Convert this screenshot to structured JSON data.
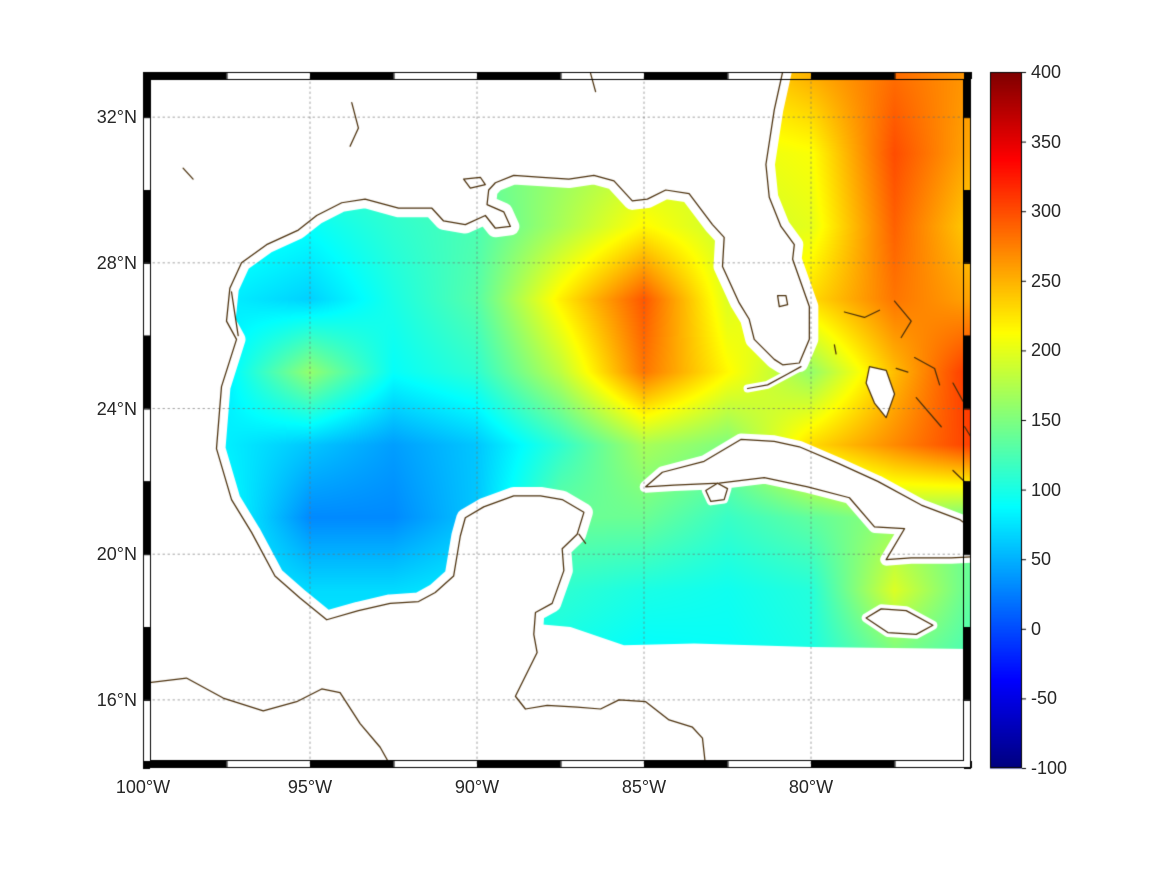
{
  "figure": {
    "background": "#ffffff",
    "frame_color": "#000000",
    "coast_color": "#4a2f0b",
    "grid_color": "#8c8c8c",
    "label_color": "#262626"
  },
  "axes": {
    "x_ticks": [
      {
        "label": "100°W",
        "lon": -100
      },
      {
        "label": "95°W",
        "lon": -95
      },
      {
        "label": "90°W",
        "lon": -90
      },
      {
        "label": "85°W",
        "lon": -85
      },
      {
        "label": "80°W",
        "lon": -80
      }
    ],
    "y_ticks": [
      {
        "label": "32°N",
        "lat": 32
      },
      {
        "label": "28°N",
        "lat": 28
      },
      {
        "label": "24°N",
        "lat": 24
      },
      {
        "label": "20°N",
        "lat": 20
      },
      {
        "label": "16°N",
        "lat": 16
      }
    ]
  },
  "colorbar": {
    "min": -100,
    "max": 400,
    "colormap": "jet",
    "tick_labels": [
      {
        "label": "400",
        "value": 400
      },
      {
        "label": "350",
        "value": 350
      },
      {
        "label": "300",
        "value": 300
      },
      {
        "label": "250",
        "value": 250
      },
      {
        "label": "200",
        "value": 200
      },
      {
        "label": "150",
        "value": 150
      },
      {
        "label": "100",
        "value": 100
      },
      {
        "label": "50",
        "value": 50
      },
      {
        "label": "0",
        "value": 0
      },
      {
        "label": "-50",
        "value": -50
      },
      {
        "label": "-100",
        "value": -100
      }
    ]
  },
  "chart_data": {
    "type": "heatmap",
    "title": "",
    "xlabel": "",
    "ylabel": "",
    "lon_range": [
      -100,
      -75.21
    ],
    "lat_range": [
      14.13,
      33.24
    ],
    "value_range": [
      -100,
      400
    ],
    "colormap": "jet",
    "grid": "dotted graticule every 5 deg lon / 4 deg lat",
    "x": [
      -100,
      -97.5,
      -95,
      -92.5,
      -90,
      -87.5,
      -85,
      -82.5,
      -80,
      -77.5,
      -75
    ],
    "y": [
      33,
      31,
      29,
      27,
      25,
      23,
      21,
      19,
      17,
      15
    ],
    "values": [
      [
        150,
        150,
        140,
        130,
        150,
        170,
        190,
        220,
        250,
        285,
        260
      ],
      [
        140,
        130,
        120,
        120,
        140,
        160,
        180,
        200,
        210,
        300,
        250
      ],
      [
        110,
        100,
        90,
        110,
        125,
        170,
        215,
        185,
        200,
        290,
        230
      ],
      [
        90,
        80,
        65,
        100,
        130,
        220,
        295,
        195,
        230,
        280,
        255
      ],
      [
        85,
        80,
        160,
        90,
        110,
        180,
        280,
        215,
        160,
        245,
        320
      ],
      [
        85,
        80,
        60,
        40,
        60,
        110,
        170,
        150,
        230,
        270,
        310
      ],
      [
        90,
        90,
        30,
        30,
        60,
        140,
        140,
        115,
        135,
        160,
        140
      ],
      [
        90,
        80,
        70,
        70,
        80,
        110,
        100,
        95,
        105,
        195,
        130
      ],
      [
        90,
        85,
        80,
        80,
        90,
        95,
        85,
        90,
        100,
        140,
        120
      ],
      [
        90,
        85,
        80,
        80,
        90,
        95,
        85,
        90,
        100,
        140,
        120
      ]
    ]
  },
  "geo": {
    "mainland_coast": [
      [
        -80.85,
        33.24
      ],
      [
        -81.1,
        32.2
      ],
      [
        -81.35,
        30.7
      ],
      [
        -81.25,
        29.8
      ],
      [
        -80.9,
        29.0
      ],
      [
        -80.5,
        28.5
      ],
      [
        -80.55,
        28.1
      ],
      [
        -80.05,
        26.8
      ],
      [
        -80.05,
        25.9
      ],
      [
        -80.35,
        25.25
      ],
      [
        -80.85,
        25.2
      ],
      [
        -81.1,
        25.35
      ],
      [
        -81.7,
        25.9
      ],
      [
        -81.85,
        26.45
      ],
      [
        -82.15,
        26.9
      ],
      [
        -82.65,
        27.9
      ],
      [
        -82.6,
        28.7
      ],
      [
        -82.95,
        29.05
      ],
      [
        -83.65,
        29.9
      ],
      [
        -84.35,
        30.0
      ],
      [
        -84.9,
        29.75
      ],
      [
        -85.35,
        29.7
      ],
      [
        -85.9,
        30.25
      ],
      [
        -86.5,
        30.4
      ],
      [
        -87.25,
        30.3
      ],
      [
        -88.05,
        30.35
      ],
      [
        -88.9,
        30.4
      ],
      [
        -89.45,
        30.2
      ],
      [
        -89.65,
        30.0
      ],
      [
        -89.7,
        29.6
      ],
      [
        -89.2,
        29.4
      ],
      [
        -89.0,
        29.0
      ],
      [
        -89.45,
        28.95
      ],
      [
        -89.75,
        29.3
      ],
      [
        -90.35,
        29.05
      ],
      [
        -91.0,
        29.15
      ],
      [
        -91.35,
        29.5
      ],
      [
        -92.35,
        29.5
      ],
      [
        -93.35,
        29.75
      ],
      [
        -94.05,
        29.65
      ],
      [
        -94.8,
        29.3
      ],
      [
        -95.35,
        28.9
      ],
      [
        -96.3,
        28.5
      ],
      [
        -97.05,
        28.0
      ],
      [
        -97.4,
        27.3
      ],
      [
        -97.5,
        26.4
      ],
      [
        -97.2,
        25.9
      ],
      [
        -97.65,
        24.6
      ],
      [
        -97.8,
        22.9
      ],
      [
        -97.35,
        21.5
      ],
      [
        -96.75,
        20.6
      ],
      [
        -96.05,
        19.4
      ],
      [
        -95.3,
        18.8
      ],
      [
        -94.5,
        18.2
      ],
      [
        -93.55,
        18.45
      ],
      [
        -92.6,
        18.65
      ],
      [
        -91.75,
        18.7
      ],
      [
        -91.25,
        18.95
      ],
      [
        -90.7,
        19.4
      ],
      [
        -90.5,
        20.5
      ],
      [
        -90.35,
        21.0
      ],
      [
        -89.8,
        21.3
      ],
      [
        -88.9,
        21.6
      ],
      [
        -88.1,
        21.6
      ],
      [
        -87.45,
        21.5
      ],
      [
        -86.8,
        21.15
      ],
      [
        -87.0,
        20.55
      ],
      [
        -87.45,
        20.15
      ],
      [
        -87.4,
        19.55
      ],
      [
        -87.75,
        18.65
      ],
      [
        -88.25,
        18.4
      ],
      [
        -88.3,
        17.8
      ],
      [
        -88.2,
        17.3
      ],
      [
        -88.85,
        16.1
      ],
      [
        -88.55,
        15.75
      ],
      [
        -87.9,
        15.85
      ],
      [
        -87.0,
        15.8
      ],
      [
        -86.3,
        15.75
      ],
      [
        -85.75,
        16.0
      ],
      [
        -84.95,
        15.95
      ],
      [
        -84.25,
        15.45
      ],
      [
        -83.55,
        15.25
      ],
      [
        -83.25,
        14.95
      ],
      [
        -83.15,
        14.13
      ]
    ],
    "pacific_coast": [
      [
        -100,
        16.45
      ],
      [
        -98.7,
        16.6
      ],
      [
        -97.6,
        16.05
      ],
      [
        -96.4,
        15.7
      ],
      [
        -95.4,
        15.95
      ],
      [
        -94.65,
        16.3
      ],
      [
        -94.1,
        16.2
      ],
      [
        -93.5,
        15.35
      ],
      [
        -92.9,
        14.7
      ],
      [
        -92.55,
        14.13
      ]
    ],
    "islands_closed": {
      "cuba": [
        [
          -84.95,
          21.85
        ],
        [
          -84.45,
          22.25
        ],
        [
          -83.2,
          22.55
        ],
        [
          -82.1,
          23.15
        ],
        [
          -81.1,
          23.1
        ],
        [
          -80.35,
          22.95
        ],
        [
          -79.2,
          22.5
        ],
        [
          -78.0,
          22.0
        ],
        [
          -76.7,
          21.35
        ],
        [
          -75.55,
          20.95
        ],
        [
          -74.6,
          20.3
        ],
        [
          -74.8,
          19.95
        ],
        [
          -75.8,
          19.9
        ],
        [
          -77.0,
          19.9
        ],
        [
          -77.75,
          19.85
        ],
        [
          -77.2,
          20.7
        ],
        [
          -78.1,
          20.75
        ],
        [
          -78.85,
          21.55
        ],
        [
          -80.1,
          21.85
        ],
        [
          -81.4,
          22.1
        ],
        [
          -82.75,
          21.95
        ],
        [
          -84.1,
          21.9
        ]
      ],
      "isla_juventud": [
        [
          -83.15,
          21.75
        ],
        [
          -82.8,
          21.95
        ],
        [
          -82.5,
          21.8
        ],
        [
          -82.6,
          21.5
        ],
        [
          -83.0,
          21.45
        ]
      ],
      "jamaica": [
        [
          -78.35,
          18.25
        ],
        [
          -77.9,
          18.5
        ],
        [
          -77.15,
          18.45
        ],
        [
          -76.35,
          18.05
        ],
        [
          -76.85,
          17.8
        ],
        [
          -77.7,
          17.85
        ]
      ],
      "andros": [
        [
          -78.25,
          25.15
        ],
        [
          -77.75,
          25.05
        ],
        [
          -77.5,
          24.4
        ],
        [
          -77.75,
          23.75
        ],
        [
          -78.1,
          24.15
        ],
        [
          -78.35,
          24.7
        ]
      ],
      "lake_okeechobee": [
        [
          -81.0,
          27.1
        ],
        [
          -80.75,
          27.1
        ],
        [
          -80.7,
          26.85
        ],
        [
          -80.95,
          26.8
        ]
      ],
      "lake_pontchartrain": [
        [
          -90.4,
          30.3
        ],
        [
          -89.9,
          30.35
        ],
        [
          -89.75,
          30.15
        ],
        [
          -90.2,
          30.05
        ]
      ]
    },
    "open_lines": {
      "grand_bahama": [
        [
          -79.0,
          26.65
        ],
        [
          -78.4,
          26.5
        ],
        [
          -77.95,
          26.7
        ]
      ],
      "abaco": [
        [
          -77.5,
          26.95
        ],
        [
          -77.0,
          26.4
        ],
        [
          -77.3,
          25.95
        ]
      ],
      "bimini": [
        [
          -79.3,
          25.75
        ],
        [
          -79.25,
          25.5
        ]
      ],
      "new_providence": [
        [
          -77.45,
          25.1
        ],
        [
          -77.1,
          25.0
        ]
      ],
      "eleuthera": [
        [
          -76.9,
          25.4
        ],
        [
          -76.3,
          25.1
        ],
        [
          -76.15,
          24.65
        ]
      ],
      "exuma": [
        [
          -76.85,
          24.3
        ],
        [
          -76.1,
          23.5
        ]
      ],
      "cat_island": [
        [
          -75.75,
          24.7
        ],
        [
          -75.45,
          24.2
        ]
      ],
      "long_island": [
        [
          -75.4,
          23.5
        ],
        [
          -75.0,
          22.9
        ]
      ],
      "ragged_islands": [
        [
          -75.75,
          22.3
        ],
        [
          -75.3,
          21.9
        ]
      ],
      "florida_keys": [
        [
          -80.3,
          25.15
        ],
        [
          -80.7,
          24.95
        ],
        [
          -81.3,
          24.65
        ],
        [
          -81.9,
          24.55
        ]
      ],
      "cozumel": [
        [
          -86.95,
          20.55
        ],
        [
          -86.75,
          20.3
        ]
      ],
      "texas_lagoon": [
        [
          -97.35,
          27.2
        ],
        [
          -97.25,
          26.6
        ],
        [
          -97.15,
          26.0
        ]
      ],
      "texas_lake": [
        [
          -98.8,
          30.6
        ],
        [
          -98.5,
          30.3
        ]
      ],
      "louisiana_river": [
        [
          -93.75,
          32.4
        ],
        [
          -93.55,
          31.7
        ],
        [
          -93.8,
          31.2
        ]
      ],
      "alabama_river": [
        [
          -86.6,
          33.2
        ],
        [
          -86.45,
          32.7
        ]
      ]
    },
    "data_void_south": [
      [
        -89.6,
        14.13
      ],
      [
        -89.6,
        18.2
      ],
      [
        -87.2,
        18.0
      ],
      [
        -85.6,
        17.5
      ],
      [
        -83.5,
        17.55
      ],
      [
        -80.0,
        17.45
      ],
      [
        -75.21,
        17.4
      ],
      [
        -75.21,
        14.13
      ]
    ]
  }
}
